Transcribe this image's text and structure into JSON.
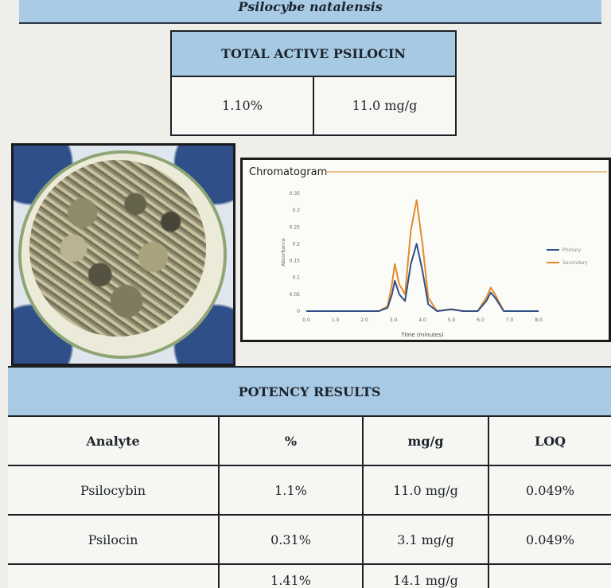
{
  "species": "Psilocybe natalensis",
  "total": {
    "title": "TOTAL ACTIVE PSILOCIN",
    "percent": "1.10%",
    "mg": "11.0 mg/g"
  },
  "chart_data": {
    "type": "line",
    "title": "Chromatogram",
    "xlabel": "Time (minutes)",
    "ylabel": "Absorbance",
    "xlim": [
      0,
      8
    ],
    "ylim": [
      0,
      0.35
    ],
    "x_ticks": [
      "0.0",
      "1.0",
      "2.0",
      "3.0",
      "4.0",
      "5.0",
      "6.0",
      "7.0",
      "8.0"
    ],
    "y_ticks": [
      "0",
      "0.05",
      "0.1",
      "0.15",
      "0.2",
      "0.25",
      "0.3",
      "0.35"
    ],
    "legend_position": "right",
    "series": [
      {
        "name": "Primary",
        "color": "#2f4f86",
        "x": [
          0,
          2.5,
          2.8,
          2.95,
          3.05,
          3.2,
          3.4,
          3.6,
          3.8,
          4.0,
          4.2,
          4.5,
          5.0,
          5.4,
          5.9,
          6.2,
          6.35,
          6.5,
          6.8,
          8.0
        ],
        "y": [
          0,
          0,
          0.01,
          0.05,
          0.09,
          0.05,
          0.03,
          0.14,
          0.2,
          0.12,
          0.02,
          0.0,
          0.005,
          0.0,
          0.0,
          0.03,
          0.055,
          0.04,
          0.0,
          0.0
        ]
      },
      {
        "name": "Secondary",
        "color": "#e58b2b",
        "x": [
          0,
          2.5,
          2.8,
          2.95,
          3.05,
          3.2,
          3.4,
          3.6,
          3.8,
          4.0,
          4.2,
          4.5,
          5.0,
          5.4,
          5.9,
          6.2,
          6.35,
          6.5,
          6.8,
          8.0
        ],
        "y": [
          0,
          0,
          0.015,
          0.08,
          0.14,
          0.08,
          0.05,
          0.24,
          0.33,
          0.2,
          0.04,
          0.0,
          0.006,
          0.0,
          0.0,
          0.04,
          0.07,
          0.05,
          0.0,
          0.0
        ]
      }
    ]
  },
  "potency": {
    "title": "POTENCY RESULTS",
    "headers": [
      "Analyte",
      "%",
      "mg/g",
      "LOQ"
    ],
    "rows": [
      {
        "analyte": "Psilocybin",
        "percent": "1.1%",
        "mg": "11.0 mg/g",
        "loq": "0.049%"
      },
      {
        "analyte": "Psilocin",
        "percent": "0.31%",
        "mg": "3.1 mg/g",
        "loq": "0.049%"
      },
      {
        "analyte": "",
        "percent": "1.41%",
        "mg": "14.1 mg/g",
        "loq": ""
      }
    ]
  }
}
